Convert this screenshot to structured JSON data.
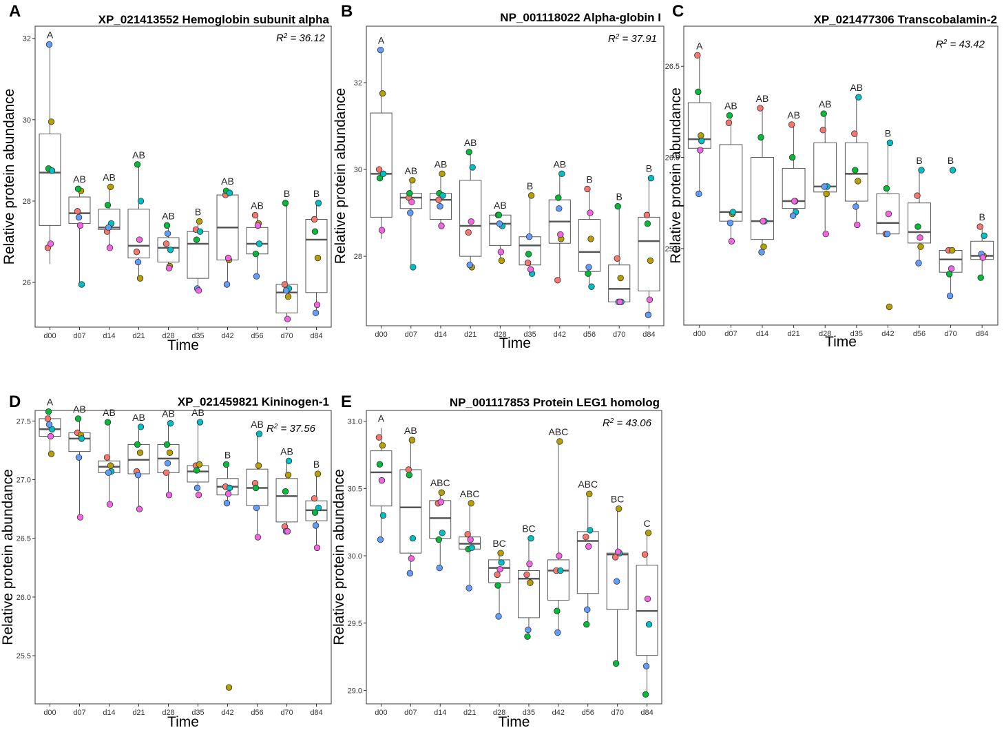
{
  "colors": {
    "point_palette": [
      "#F8766D",
      "#B79F00",
      "#00BA38",
      "#00BFC4",
      "#619CFF",
      "#F564E3"
    ],
    "box_fill": "#ffffff",
    "box_stroke": "#555555",
    "median_stroke": "#555555",
    "panel_border": "#333333"
  },
  "chart_data": [
    {
      "type": "box",
      "panel_letter": "A",
      "title": "XP_021413552 Hemoglobin subunit alpha",
      "r2_prefix": "R",
      "r2_sup": "2",
      "r2_value": " = 36.12",
      "xlabel": "Time",
      "ylabel": "Relative protein abundance",
      "categories": [
        "d00",
        "d07",
        "d14",
        "d21",
        "d28",
        "d35",
        "d42",
        "d56",
        "d70",
        "d84"
      ],
      "ylim": [
        24.9,
        32.3
      ],
      "yticks": [
        26,
        28,
        30,
        32
      ],
      "ytick_labels": [
        "26",
        "28",
        "30",
        "32"
      ],
      "letters": [
        "A",
        "AB",
        "AB",
        "AB",
        "AB",
        "B",
        "AB",
        "AB",
        "B",
        "B"
      ],
      "boxes": [
        {
          "q1": 27.4,
          "median": 28.7,
          "q3": 29.65,
          "wmin": 26.45,
          "wmax": 31.85
        },
        {
          "q1": 27.45,
          "median": 27.7,
          "q3": 28.1,
          "wmin": 25.95,
          "wmax": 28.3
        },
        {
          "q1": 27.3,
          "median": 27.35,
          "q3": 27.8,
          "wmin": 26.9,
          "wmax": 28.35
        },
        {
          "q1": 26.6,
          "median": 26.9,
          "q3": 27.8,
          "wmin": 26.1,
          "wmax": 28.85
        },
        {
          "q1": 26.5,
          "median": 26.85,
          "q3": 27.1,
          "wmin": 26.35,
          "wmax": 27.4
        },
        {
          "q1": 26.1,
          "median": 26.95,
          "q3": 27.25,
          "wmin": 25.85,
          "wmax": 27.5
        },
        {
          "q1": 26.55,
          "median": 27.35,
          "q3": 28.15,
          "wmin": 25.95,
          "wmax": 28.25
        },
        {
          "q1": 26.7,
          "median": 26.95,
          "q3": 27.35,
          "wmin": 26.15,
          "wmax": 27.65
        },
        {
          "q1": 25.25,
          "median": 25.75,
          "q3": 25.95,
          "wmin": 25.1,
          "wmax": 27.95
        },
        {
          "q1": 25.75,
          "median": 27.05,
          "q3": 27.55,
          "wmin": 25.25,
          "wmax": 27.95
        }
      ],
      "points": [
        [
          26.85,
          29.95,
          28.8,
          28.75,
          31.85,
          26.95
        ],
        [
          27.75,
          28.25,
          28.3,
          25.95,
          27.6,
          27.4
        ],
        [
          27.25,
          28.35,
          27.9,
          27.45,
          27.35,
          26.85
        ],
        [
          26.75,
          26.1,
          28.9,
          28.0,
          26.5,
          27.05
        ],
        [
          26.95,
          26.4,
          27.4,
          26.8,
          27.2,
          26.35
        ],
        [
          27.3,
          27.5,
          27.05,
          27.25,
          25.85,
          25.8
        ],
        [
          28.15,
          26.55,
          28.25,
          28.2,
          25.95,
          26.6
        ],
        [
          27.65,
          27.45,
          26.7,
          26.95,
          26.15,
          27.4
        ],
        [
          25.95,
          25.65,
          27.95,
          25.85,
          25.8,
          25.1
        ],
        [
          27.55,
          26.6,
          27.25,
          27.95,
          25.25,
          25.45
        ]
      ]
    },
    {
      "type": "box",
      "panel_letter": "B",
      "title": "NP_001118022 Alpha-globin I",
      "r2_prefix": "R",
      "r2_sup": "2",
      "r2_value": " = 37.91",
      "xlabel": "Time",
      "ylabel": "Relative protein abundance",
      "categories": [
        "d00",
        "d07",
        "d14",
        "d21",
        "d28",
        "d35",
        "d42",
        "d56",
        "d70",
        "d84"
      ],
      "ylim": [
        26.4,
        33.3
      ],
      "yticks": [
        28,
        30,
        32
      ],
      "ytick_labels": [
        "28",
        "30",
        "32"
      ],
      "letters": [
        "A",
        "AB",
        "AB",
        "AB",
        "AB",
        "B",
        "AB",
        "B",
        "B",
        "B"
      ],
      "boxes": [
        {
          "q1": 28.9,
          "median": 29.9,
          "q3": 31.3,
          "wmin": 28.4,
          "wmax": 32.75
        },
        {
          "q1": 29.1,
          "median": 29.35,
          "q3": 29.45,
          "wmin": 27.75,
          "wmax": 29.75
        },
        {
          "q1": 28.85,
          "median": 29.3,
          "q3": 29.45,
          "wmin": 28.7,
          "wmax": 29.9
        },
        {
          "q1": 28.0,
          "median": 28.7,
          "q3": 29.75,
          "wmin": 27.75,
          "wmax": 30.4
        },
        {
          "q1": 28.25,
          "median": 28.75,
          "q3": 28.95,
          "wmin": 27.9,
          "wmax": 28.95
        },
        {
          "q1": 27.8,
          "median": 28.25,
          "q3": 28.45,
          "wmin": 27.6,
          "wmax": 29.4
        },
        {
          "q1": 28.3,
          "median": 28.8,
          "q3": 29.3,
          "wmin": 27.45,
          "wmax": 29.9
        },
        {
          "q1": 27.65,
          "median": 28.1,
          "q3": 28.85,
          "wmin": 27.3,
          "wmax": 29.55
        },
        {
          "q1": 26.95,
          "median": 27.25,
          "q3": 27.8,
          "wmin": 26.9,
          "wmax": 29.15
        },
        {
          "q1": 27.2,
          "median": 28.35,
          "q3": 28.9,
          "wmin": 26.65,
          "wmax": 29.8
        }
      ],
      "points": [
        [
          30.0,
          31.75,
          29.8,
          29.9,
          32.75,
          28.6
        ],
        [
          29.35,
          29.75,
          29.45,
          27.75,
          29.0,
          29.25
        ],
        [
          29.3,
          29.9,
          29.45,
          29.4,
          29.15,
          28.7
        ],
        [
          28.55,
          27.75,
          30.4,
          30.05,
          27.8,
          28.8
        ],
        [
          28.95,
          27.9,
          28.95,
          28.7,
          28.75,
          28.1
        ],
        [
          27.85,
          29.4,
          28.05,
          27.6,
          28.45,
          27.7
        ],
        [
          27.45,
          28.4,
          29.35,
          29.9,
          29.1,
          28.5
        ],
        [
          29.55,
          28.4,
          27.6,
          27.3,
          27.75,
          29.0
        ],
        [
          27.95,
          27.5,
          29.15,
          26.95,
          26.95,
          26.95
        ],
        [
          28.95,
          27.9,
          28.75,
          29.8,
          26.65,
          27.0
        ]
      ]
    },
    {
      "type": "box",
      "panel_letter": "C",
      "title": "XP_021477306 Transcobalamin-2",
      "r2_prefix": "R",
      "r2_sup": "2",
      "r2_value": " = 43.42",
      "xlabel": "Time",
      "ylabel": "Relative protein abundance",
      "categories": [
        "d00",
        "d07",
        "d14",
        "d21",
        "d28",
        "d35",
        "d42",
        "d56",
        "d70",
        "d84"
      ],
      "ylim": [
        25.08,
        26.72
      ],
      "yticks": [
        25.5,
        26.0,
        26.5
      ],
      "ytick_labels": [
        "25.5",
        "26.0",
        "26.5"
      ],
      "letters": [
        "A",
        "AB",
        "AB",
        "AB",
        "AB",
        "AB",
        "B",
        "B",
        "B",
        "B"
      ],
      "boxes": [
        {
          "q1": 26.05,
          "median": 26.1,
          "q3": 26.3,
          "wmin": 25.8,
          "wmax": 26.56
        },
        {
          "q1": 25.65,
          "median": 25.7,
          "q3": 26.07,
          "wmin": 25.54,
          "wmax": 26.23
        },
        {
          "q1": 25.55,
          "median": 25.65,
          "q3": 26.0,
          "wmin": 25.48,
          "wmax": 26.27
        },
        {
          "q1": 25.72,
          "median": 25.76,
          "q3": 25.94,
          "wmin": 25.68,
          "wmax": 26.18
        },
        {
          "q1": 25.81,
          "median": 25.84,
          "q3": 26.08,
          "wmin": 25.58,
          "wmax": 26.24
        },
        {
          "q1": 25.76,
          "median": 25.91,
          "q3": 26.08,
          "wmin": 25.63,
          "wmax": 26.33
        },
        {
          "q1": 25.58,
          "median": 25.64,
          "q3": 25.8,
          "wmin": 25.57,
          "wmax": 26.08
        },
        {
          "q1": 25.53,
          "median": 25.59,
          "q3": 25.75,
          "wmin": 25.41,
          "wmax": 25.93
        },
        {
          "q1": 25.37,
          "median": 25.44,
          "q3": 25.49,
          "wmin": 25.24,
          "wmax": 25.49
        },
        {
          "q1": 25.44,
          "median": 25.46,
          "q3": 25.54,
          "wmin": 25.34,
          "wmax": 25.62
        }
      ],
      "points": [
        [
          26.56,
          26.12,
          26.36,
          26.09,
          25.8,
          26.04
        ],
        [
          26.19,
          25.69,
          26.23,
          25.7,
          25.64,
          25.54
        ],
        [
          26.27,
          25.51,
          26.11,
          25.65,
          25.48,
          25.65
        ],
        [
          26.18,
          25.76,
          26.0,
          25.7,
          25.68,
          25.76
        ],
        [
          26.15,
          25.8,
          26.24,
          25.84,
          25.84,
          25.58
        ],
        [
          26.13,
          25.87,
          25.93,
          26.33,
          25.73,
          25.63
        ],
        [
          25.58,
          25.18,
          25.83,
          26.08,
          25.58,
          25.69
        ],
        [
          25.79,
          25.51,
          25.62,
          25.93,
          25.42,
          25.56
        ],
        [
          25.49,
          25.49,
          25.36,
          25.93,
          25.24,
          25.39
        ],
        [
          25.62,
          25.46,
          25.34,
          25.57,
          25.47,
          25.45
        ]
      ]
    },
    {
      "type": "box",
      "panel_letter": "D",
      "title": "XP_021459821 Kininogen-1",
      "r2_prefix": "R",
      "r2_sup": "2",
      "r2_value": " = 37.56",
      "xlabel": "Time",
      "ylabel": "Relative protein abundance",
      "categories": [
        "d00",
        "d07",
        "d14",
        "d21",
        "d28",
        "d35",
        "d42",
        "d56",
        "d70",
        "d84"
      ],
      "ylim": [
        25.09,
        27.59
      ],
      "yticks": [
        25.5,
        26.0,
        26.5,
        27.0,
        27.5
      ],
      "ytick_labels": [
        "25.5",
        "26.0",
        "26.5",
        "27.0",
        "27.5"
      ],
      "letters": [
        "A",
        "AB",
        "AB",
        "AB",
        "AB",
        "AB",
        "B",
        "AB",
        "AB",
        "B"
      ],
      "boxes": [
        {
          "q1": 27.37,
          "median": 27.43,
          "q3": 27.52,
          "wmin": 27.22,
          "wmax": 27.58
        },
        {
          "q1": 27.24,
          "median": 27.35,
          "q3": 27.4,
          "wmin": 26.68,
          "wmax": 27.52
        },
        {
          "q1": 27.06,
          "median": 27.11,
          "q3": 27.16,
          "wmin": 26.79,
          "wmax": 27.49
        },
        {
          "q1": 27.05,
          "median": 27.17,
          "q3": 27.3,
          "wmin": 26.75,
          "wmax": 27.45
        },
        {
          "q1": 27.06,
          "median": 27.18,
          "q3": 27.3,
          "wmin": 26.87,
          "wmax": 27.48
        },
        {
          "q1": 26.98,
          "median": 27.07,
          "q3": 27.12,
          "wmin": 26.87,
          "wmax": 27.49
        },
        {
          "q1": 26.87,
          "median": 26.94,
          "q3": 27.01,
          "wmin": 26.8,
          "wmax": 27.13
        },
        {
          "q1": 26.78,
          "median": 26.93,
          "q3": 27.09,
          "wmin": 26.51,
          "wmax": 27.39
        },
        {
          "q1": 26.64,
          "median": 26.86,
          "q3": 27.01,
          "wmin": 26.56,
          "wmax": 27.16
        },
        {
          "q1": 26.65,
          "median": 26.74,
          "q3": 26.82,
          "wmin": 26.42,
          "wmax": 27.05
        }
      ],
      "points": [
        [
          27.52,
          27.22,
          27.58,
          27.43,
          27.47,
          27.37
        ],
        [
          27.4,
          27.38,
          27.52,
          27.35,
          27.19,
          26.68
        ],
        [
          27.19,
          27.12,
          27.49,
          27.07,
          27.06,
          26.79
        ],
        [
          27.07,
          27.23,
          27.3,
          27.45,
          27.04,
          26.75
        ],
        [
          27.06,
          27.23,
          27.3,
          27.48,
          27.14,
          26.87
        ],
        [
          27.12,
          27.13,
          27.08,
          27.49,
          26.93,
          26.87
        ],
        [
          26.94,
          25.23,
          27.13,
          26.93,
          26.8,
          26.88
        ],
        [
          26.97,
          27.12,
          26.93,
          27.39,
          26.76,
          26.51
        ],
        [
          26.6,
          27.04,
          26.9,
          27.16,
          26.56,
          26.56
        ],
        [
          26.84,
          27.05,
          26.72,
          26.76,
          26.61,
          26.42
        ]
      ]
    },
    {
      "type": "box",
      "panel_letter": "E",
      "title": "NP_001117853 Protein LEG1 homolog",
      "r2_prefix": "R",
      "r2_sup": "2",
      "r2_value": " = 43.06",
      "xlabel": "Time",
      "ylabel": "Relative protein abundance",
      "categories": [
        "d00",
        "d07",
        "d14",
        "d21",
        "d28",
        "d35",
        "d42",
        "d56",
        "d70",
        "d84"
      ],
      "ylim": [
        28.9,
        31.08
      ],
      "yticks": [
        29.0,
        29.5,
        30.0,
        30.5,
        31.0
      ],
      "ytick_labels": [
        "29.0",
        "29.5",
        "30.0",
        "30.5",
        "31.0"
      ],
      "letters": [
        "A",
        "AB",
        "ABC",
        "ABC",
        "BC",
        "BC",
        "ABC",
        "ABC",
        "BC",
        "C"
      ],
      "boxes": [
        {
          "q1": 30.37,
          "median": 30.62,
          "q3": 30.78,
          "wmin": 30.12,
          "wmax": 30.95
        },
        {
          "q1": 30.02,
          "median": 30.36,
          "q3": 30.64,
          "wmin": 29.87,
          "wmax": 30.86
        },
        {
          "q1": 30.13,
          "median": 30.28,
          "q3": 30.41,
          "wmin": 29.91,
          "wmax": 30.47
        },
        {
          "q1": 30.05,
          "median": 30.09,
          "q3": 30.14,
          "wmin": 29.76,
          "wmax": 30.39
        },
        {
          "q1": 29.8,
          "median": 29.91,
          "q3": 29.97,
          "wmin": 29.55,
          "wmax": 30.02
        },
        {
          "q1": 29.54,
          "median": 29.83,
          "q3": 29.89,
          "wmin": 29.4,
          "wmax": 30.13
        },
        {
          "q1": 29.67,
          "median": 29.89,
          "q3": 29.97,
          "wmin": 29.43,
          "wmax": 30.85
        },
        {
          "q1": 29.72,
          "median": 30.11,
          "q3": 30.18,
          "wmin": 29.49,
          "wmax": 30.46
        },
        {
          "q1": 29.6,
          "median": 30.01,
          "q3": 30.02,
          "wmin": 29.2,
          "wmax": 30.35
        },
        {
          "q1": 29.26,
          "median": 29.59,
          "q3": 29.93,
          "wmin": 28.97,
          "wmax": 30.17
        }
      ],
      "points": [
        [
          30.88,
          30.82,
          30.68,
          30.3,
          30.12,
          30.56
        ],
        [
          30.64,
          30.86,
          30.6,
          30.13,
          29.87,
          29.98
        ],
        [
          30.39,
          30.47,
          30.12,
          30.17,
          29.91,
          30.4
        ],
        [
          30.16,
          30.39,
          30.05,
          30.06,
          29.76,
          30.12
        ],
        [
          29.86,
          30.02,
          29.78,
          29.95,
          29.55,
          29.9
        ],
        [
          29.86,
          29.8,
          29.4,
          30.13,
          29.45,
          29.94
        ],
        [
          29.89,
          30.85,
          29.59,
          29.89,
          29.43,
          30.0
        ],
        [
          30.14,
          30.46,
          29.49,
          30.19,
          29.6,
          30.07
        ],
        [
          29.99,
          30.35,
          29.2,
          30.02,
          29.81,
          30.03
        ],
        [
          30.01,
          30.17,
          28.97,
          29.49,
          29.18,
          29.68
        ]
      ]
    }
  ]
}
